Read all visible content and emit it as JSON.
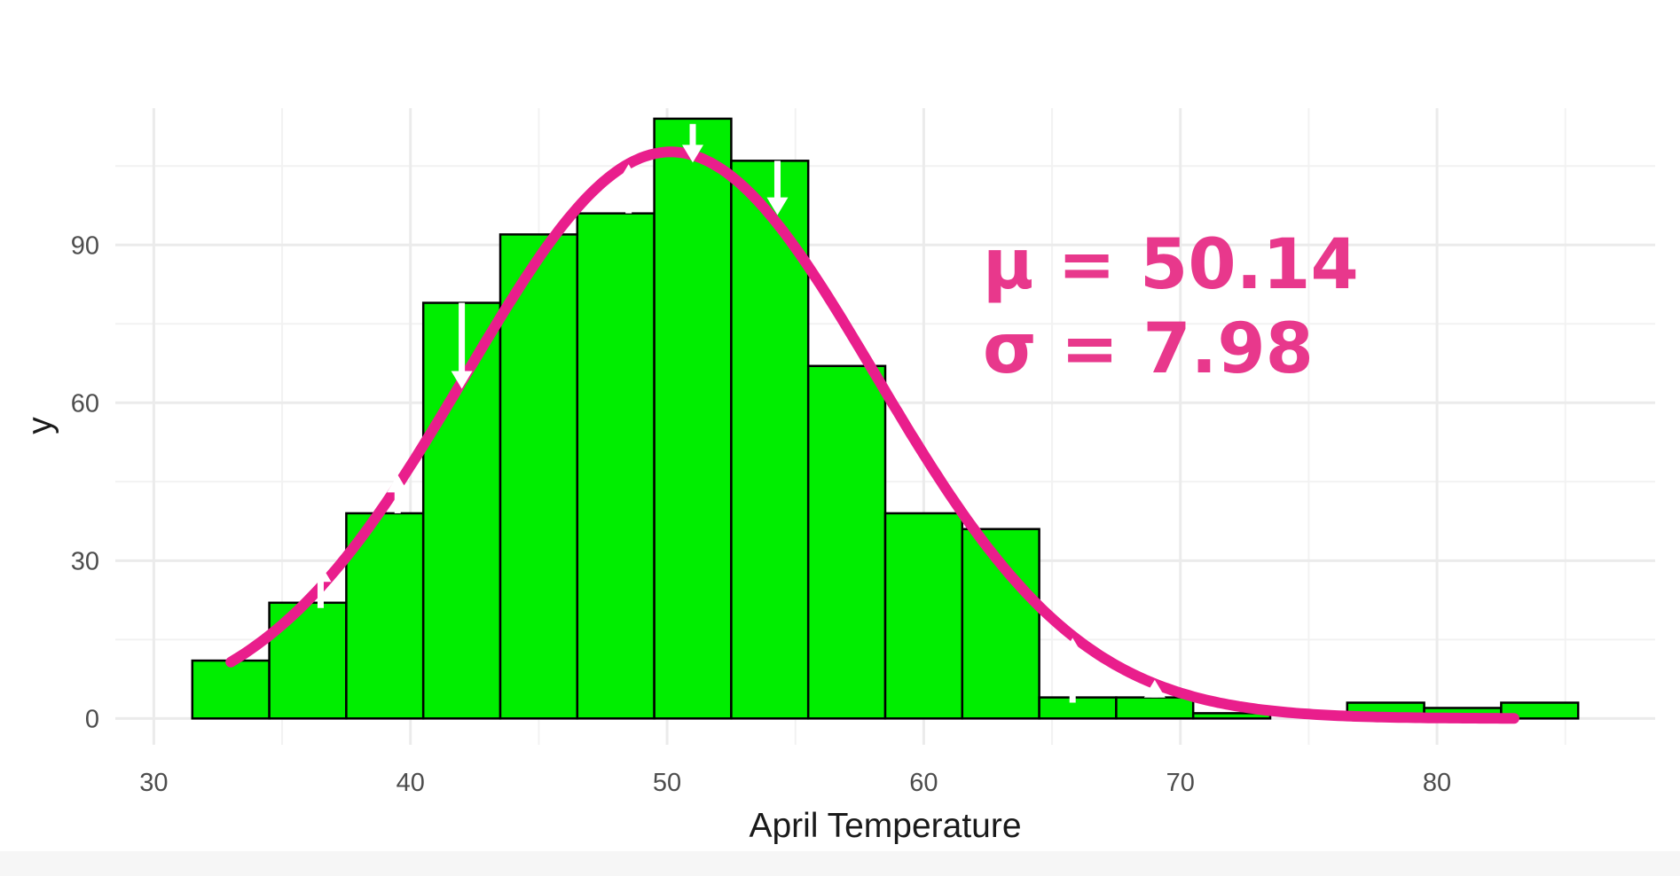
{
  "chart_data": {
    "type": "bar",
    "title": "",
    "xlabel": "April Temperature",
    "ylabel": "y",
    "xlim": [
      28.5,
      88.5
    ],
    "ylim": [
      -5,
      116
    ],
    "x_ticks": [
      30,
      40,
      50,
      60,
      70,
      80
    ],
    "y_ticks": [
      0,
      30,
      60,
      90
    ],
    "grid": true,
    "bar_color": "#00ee00",
    "bar_edge_color": "#000000",
    "bins": [
      {
        "x0": 31.5,
        "x1": 34.5,
        "count": 11
      },
      {
        "x0": 34.5,
        "x1": 37.5,
        "count": 22
      },
      {
        "x0": 37.5,
        "x1": 40.5,
        "count": 39
      },
      {
        "x0": 40.5,
        "x1": 43.5,
        "count": 79
      },
      {
        "x0": 43.5,
        "x1": 46.5,
        "count": 92
      },
      {
        "x0": 46.5,
        "x1": 49.5,
        "count": 96
      },
      {
        "x0": 49.5,
        "x1": 52.5,
        "count": 114
      },
      {
        "x0": 52.5,
        "x1": 55.5,
        "count": 106
      },
      {
        "x0": 55.5,
        "x1": 58.5,
        "count": 67
      },
      {
        "x0": 58.5,
        "x1": 61.5,
        "count": 39
      },
      {
        "x0": 61.5,
        "x1": 64.5,
        "count": 36
      },
      {
        "x0": 64.5,
        "x1": 67.5,
        "count": 4
      },
      {
        "x0": 67.5,
        "x1": 70.5,
        "count": 4
      },
      {
        "x0": 70.5,
        "x1": 73.5,
        "count": 1
      },
      {
        "x0": 73.5,
        "x1": 76.5,
        "count": 0
      },
      {
        "x0": 76.5,
        "x1": 79.5,
        "count": 3
      },
      {
        "x0": 79.5,
        "x1": 82.5,
        "count": 2
      },
      {
        "x0": 82.5,
        "x1": 85.5,
        "count": 3
      }
    ],
    "fit_curve": {
      "color": "#e91e8c",
      "mu": 50.14,
      "sigma": 7.98,
      "x_range": [
        33,
        83
      ]
    },
    "arrows": [
      {
        "x": 36.5,
        "from": 21,
        "to": 29
      },
      {
        "x": 39.5,
        "from": 39,
        "to": 46
      },
      {
        "x": 42,
        "from": 79,
        "to": 63
      },
      {
        "x": 48.5,
        "from": 96,
        "to": 105
      },
      {
        "x": 51,
        "from": 113,
        "to": 106
      },
      {
        "x": 54.3,
        "from": 106,
        "to": 96
      },
      {
        "x": 65.8,
        "from": 3,
        "to": 15
      },
      {
        "x": 69,
        "from": 4,
        "to": 7
      }
    ],
    "annotations": {
      "mu_text": "μ = 50.14",
      "sigma_text": "σ = 7.98",
      "color": "#e8388c"
    }
  }
}
